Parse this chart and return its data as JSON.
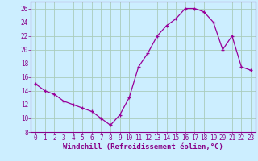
{
  "hours": [
    0,
    1,
    2,
    3,
    4,
    5,
    6,
    7,
    8,
    9,
    10,
    11,
    12,
    13,
    14,
    15,
    16,
    17,
    18,
    19,
    20,
    21,
    22,
    23
  ],
  "windchill": [
    15,
    14,
    13.5,
    12.5,
    12,
    11.5,
    11,
    10,
    9,
    10.5,
    13,
    17.5,
    19.5,
    22,
    23.5,
    24.5,
    26,
    26,
    25.5,
    24,
    20,
    22,
    17.5,
    17
  ],
  "line_color": "#990099",
  "marker": "+",
  "bg_color": "#cceeff",
  "grid_color": "#aaccbb",
  "xlabel": "Windchill (Refroidissement éolien,°C)",
  "ylim": [
    8,
    27
  ],
  "yticks": [
    8,
    10,
    12,
    14,
    16,
    18,
    20,
    22,
    24,
    26
  ],
  "xticks": [
    0,
    1,
    2,
    3,
    4,
    5,
    6,
    7,
    8,
    9,
    10,
    11,
    12,
    13,
    14,
    15,
    16,
    17,
    18,
    19,
    20,
    21,
    22,
    23
  ],
  "tick_color": "#880088",
  "axis_label_color": "#880088",
  "xlabel_fontsize": 6.5,
  "tick_fontsize": 5.5,
  "line_width": 0.9,
  "marker_size": 3.0
}
